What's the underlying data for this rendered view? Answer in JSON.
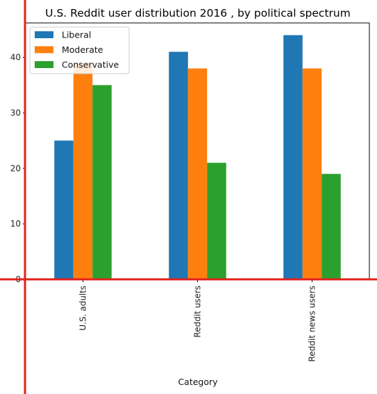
{
  "chart_data": {
    "type": "bar",
    "title": "U.S. Reddit user distribution 2016 , by political spectrum",
    "xlabel": "Category",
    "ylabel": "",
    "categories": [
      "U.S. adults",
      "Reddit users",
      "Reddit news users"
    ],
    "series": [
      {
        "name": "Liberal",
        "values": [
          25,
          41,
          44
        ],
        "color": "#1f77b4"
      },
      {
        "name": "Moderate",
        "values": [
          39,
          38,
          38
        ],
        "color": "#ff7f0e"
      },
      {
        "name": "Conservative",
        "values": [
          35,
          21,
          19
        ],
        "color": "#2ca02c"
      }
    ],
    "yticks": [
      0,
      10,
      20,
      30,
      40
    ],
    "ylim": [
      0,
      46.2
    ],
    "grid": false,
    "legend_position": "top-left",
    "overlay_lines_color": "#e3201b"
  }
}
